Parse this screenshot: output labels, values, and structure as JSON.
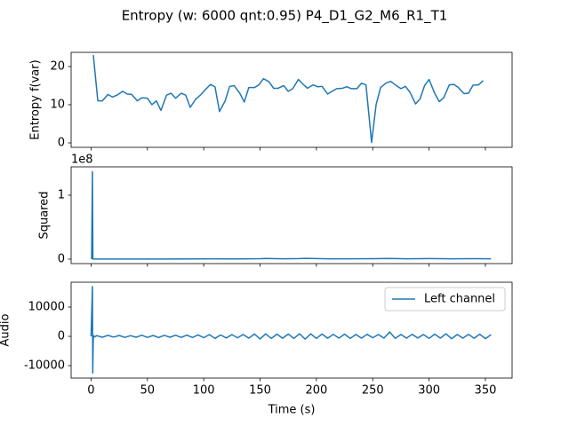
{
  "title": "Entropy (w: 6000 qnt:0.95) P4_D1_G2_M6_R1_T1",
  "chart_data": [
    {
      "type": "line",
      "ylabel": "Entropy f(var)",
      "color": "#1f77b4",
      "xlim": [
        -17.7,
        373.7
      ],
      "xticks": [
        0,
        50,
        100,
        150,
        200,
        250,
        300,
        350
      ],
      "ylim": [
        -1.16,
        23.7
      ],
      "yticks": [
        0,
        10,
        20
      ],
      "x": [
        2,
        6,
        10,
        15,
        19,
        23,
        28,
        32,
        36,
        41,
        45,
        50,
        54,
        58,
        62,
        67,
        71,
        75,
        80,
        84,
        88,
        93,
        97,
        101,
        106,
        110,
        114,
        119,
        123,
        127,
        132,
        136,
        140,
        145,
        149,
        153,
        158,
        162,
        166,
        171,
        175,
        179,
        184,
        188,
        192,
        197,
        201,
        205,
        210,
        214,
        218,
        223,
        227,
        231,
        236,
        240,
        244,
        249,
        253,
        257,
        262,
        266,
        270,
        275,
        279,
        283,
        288,
        292,
        296,
        300,
        305,
        309,
        313,
        318,
        322,
        326,
        331,
        335,
        339,
        344,
        348
      ],
      "values": [
        23,
        11,
        11,
        12.7,
        12,
        12.5,
        13.5,
        12.8,
        12.7,
        11,
        11.8,
        11.7,
        10,
        11,
        8.5,
        12.5,
        13,
        11.7,
        13,
        12.5,
        9.3,
        11.5,
        12.5,
        13.8,
        15.3,
        14.7,
        8.2,
        11,
        14.8,
        15,
        13,
        10.7,
        14.5,
        14.5,
        15.2,
        16.8,
        16,
        14.3,
        14.3,
        15,
        13.5,
        14.2,
        16.6,
        15.4,
        14.3,
        15.2,
        14.7,
        14.8,
        12.8,
        13.5,
        14.2,
        14.3,
        14.7,
        14.2,
        14.2,
        15.6,
        15.2,
        0.1,
        10,
        14.5,
        15.7,
        16.1,
        15.2,
        14.2,
        14.8,
        13.3,
        10.2,
        11.5,
        15,
        16.6,
        13,
        10.8,
        11.8,
        15.2,
        15.3,
        14.5,
        12.9,
        13,
        15.1,
        15.2,
        16.3
      ]
    },
    {
      "type": "line",
      "ylabel": "Squared",
      "offset_text": "1e8",
      "color": "#1f77b4",
      "xlim": [
        -17.7,
        373.7
      ],
      "xticks": [
        0,
        50,
        100,
        150,
        200,
        250,
        300,
        350
      ],
      "ylim": [
        -0.07,
        1.444
      ],
      "yticks": [
        0,
        1
      ],
      "x": [
        0.5,
        1.2,
        1.6,
        5,
        30,
        60,
        90,
        110,
        130,
        150,
        155,
        170,
        185,
        190,
        210,
        230,
        250,
        265,
        280,
        300,
        320,
        340,
        355
      ],
      "values": [
        0,
        1.37,
        0.002,
        0.001,
        0.002,
        0.001,
        0.003,
        0.004,
        0.003,
        0.006,
        0.01,
        0.004,
        0.008,
        0.012,
        0.005,
        0.004,
        0.006,
        0.01,
        0.004,
        0.008,
        0.005,
        0.007,
        0.004
      ]
    },
    {
      "type": "line",
      "ylabel": "Audio",
      "xlabel": "Time (s)",
      "legend": "upper right",
      "xlim": [
        -17.7,
        373.7
      ],
      "xticks": [
        0,
        50,
        100,
        150,
        200,
        250,
        300,
        350
      ],
      "ylim": [
        -14242,
        18485
      ],
      "yticks": [
        -10000,
        0,
        10000
      ],
      "x": [
        0,
        1.2,
        1.5,
        2,
        3,
        5,
        10,
        15,
        20,
        25,
        30,
        35,
        40,
        45,
        50,
        55,
        60,
        65,
        70,
        75,
        80,
        85,
        90,
        95,
        100,
        105,
        110,
        115,
        120,
        125,
        130,
        135,
        140,
        145,
        150,
        155,
        160,
        165,
        170,
        175,
        180,
        185,
        190,
        195,
        200,
        205,
        210,
        215,
        220,
        225,
        230,
        235,
        240,
        245,
        250,
        255,
        260,
        265,
        270,
        275,
        280,
        285,
        290,
        295,
        300,
        305,
        310,
        315,
        320,
        325,
        330,
        335,
        340,
        345,
        350,
        355
      ],
      "series": [
        {
          "name": "Left channel",
          "color": "#1f77b4",
          "values": [
            0,
            17000,
            -12500,
            300,
            -200,
            250,
            -300,
            350,
            -250,
            300,
            -350,
            250,
            -300,
            400,
            -350,
            300,
            -400,
            350,
            -300,
            400,
            -350,
            450,
            -400,
            500,
            -450,
            600,
            -700,
            500,
            -550,
            600,
            -500,
            650,
            -600,
            800,
            -900,
            850,
            -700,
            750,
            -650,
            800,
            -700,
            900,
            -950,
            850,
            -700,
            800,
            -650,
            700,
            -600,
            750,
            -700,
            650,
            -600,
            700,
            -500,
            650,
            -600,
            1500,
            -700,
            650,
            -600,
            700,
            -550,
            650,
            -700,
            750,
            -600,
            900,
            -800,
            650,
            -600,
            700,
            -650,
            750,
            -800,
            600
          ]
        }
      ]
    }
  ]
}
